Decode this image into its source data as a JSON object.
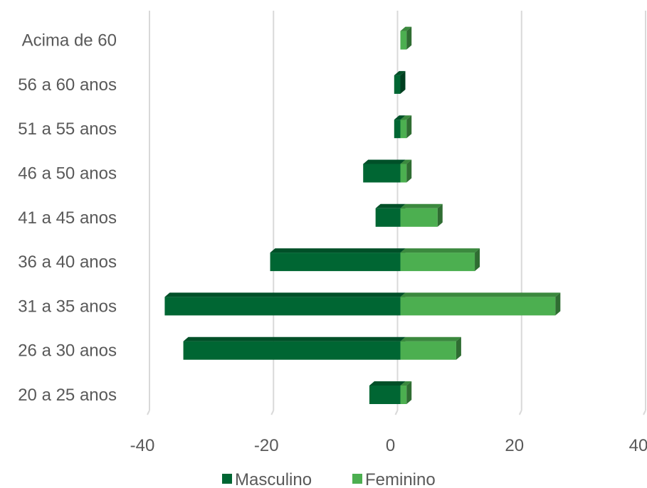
{
  "chart_data": {
    "type": "bar",
    "orientation": "horizontal",
    "stacking": "diverging",
    "categories": [
      "20 a 25 anos",
      "26 a 30 anos",
      "31 a 35 anos",
      "36 a 40 anos",
      "41 a 45 anos",
      "46 a 50 anos",
      "51 a 55 anos",
      "56 a 60 anos",
      "Acima de 60"
    ],
    "series": [
      {
        "name": "Masculino",
        "values": [
          -5,
          -35,
          -38,
          -21,
          -4,
          -6,
          -1,
          -1,
          0
        ],
        "color": "#006633"
      },
      {
        "name": "Feminino",
        "values": [
          1,
          9,
          25,
          12,
          6,
          1,
          1,
          0,
          1
        ],
        "color": "#4caf50"
      }
    ],
    "xlim": [
      -40,
      40
    ],
    "xticks": [
      -40,
      -20,
      0,
      20,
      40
    ],
    "tick_labels": [
      "-40",
      "-20",
      "0",
      "20",
      "40"
    ],
    "grid": true,
    "legend": "bottom",
    "title": "",
    "xlabel": "",
    "ylabel": ""
  }
}
